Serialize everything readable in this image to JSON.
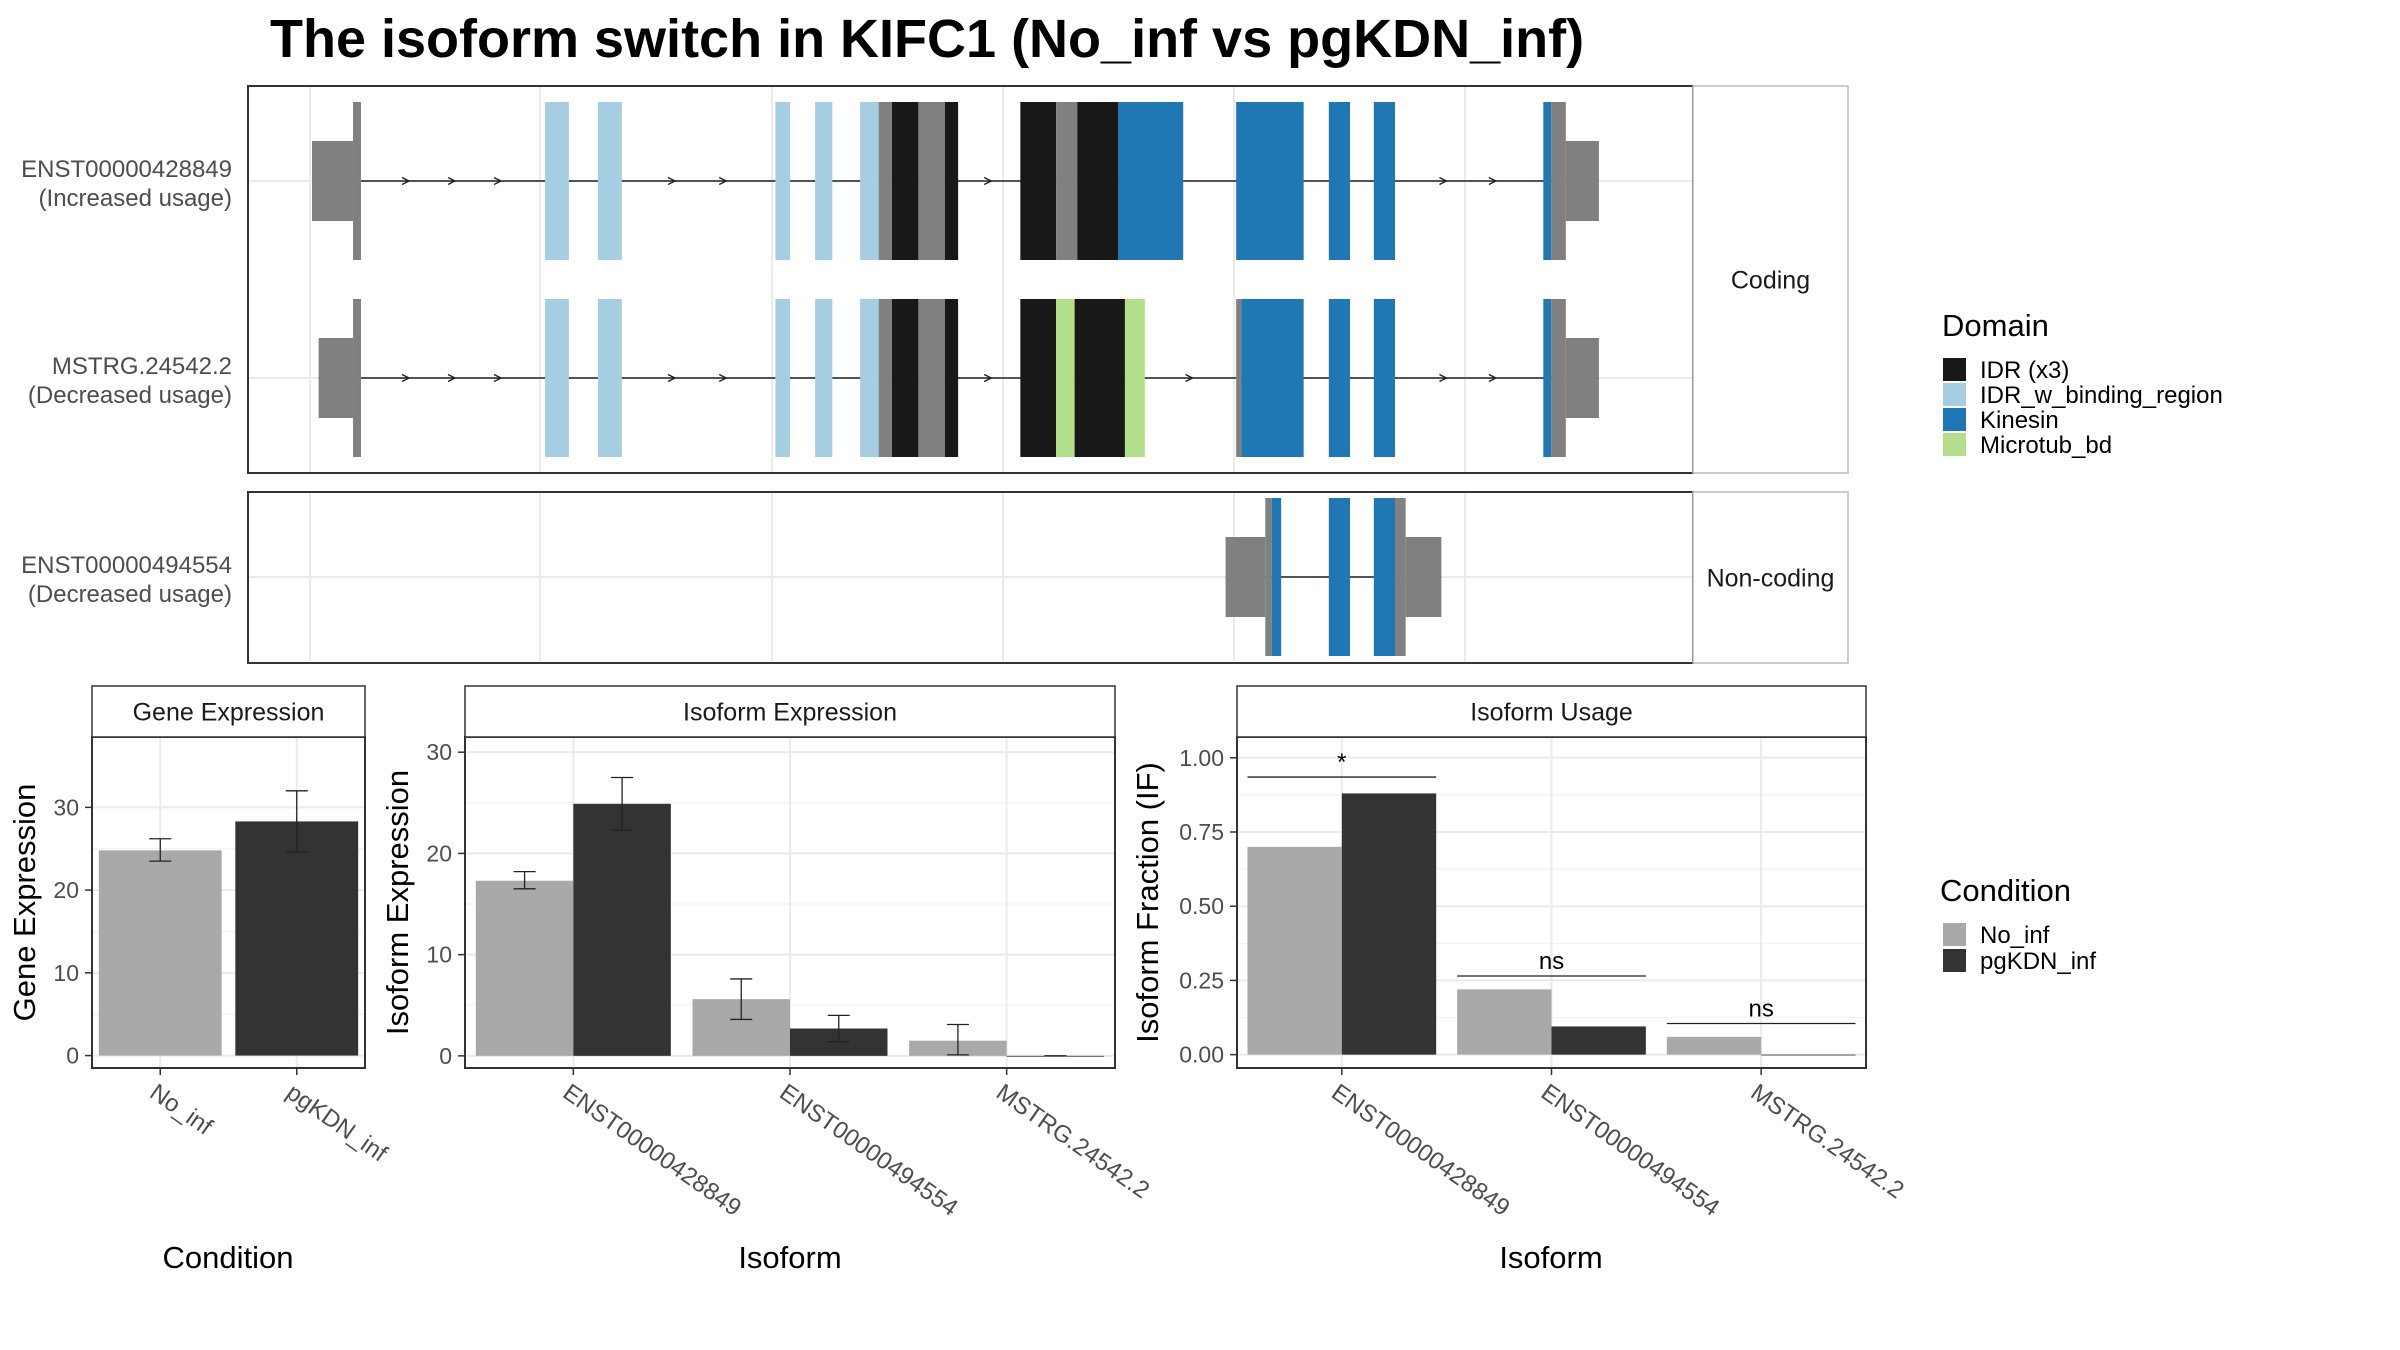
{
  "title": "The isoform switch in KIFC1 (No_inf vs pgKDN_inf)",
  "colors": {
    "utr": "#808080",
    "IDR (x3)": "#181818",
    "IDR_w_binding_region": "#a6cee3",
    "Kinesin": "#1f78b4",
    "Microtub_bd": "#b2df8a",
    "No_inf": "#a9a9a9",
    "pgKDN_inf": "#333333"
  },
  "structure": {
    "coding_strip": "Coding",
    "noncoding_strip": "Non-coding",
    "tracks": [
      {
        "id": "ENST00000428849",
        "usage": "(Increased usage)",
        "panel": "coding",
        "span": [
          0.0,
          1.0
        ],
        "exons": [
          {
            "s": 0.0,
            "e": 0.031,
            "t": "utr"
          },
          {
            "s": 0.031,
            "e": 0.037,
            "t": "cds",
            "d": "utr"
          },
          {
            "s": 0.176,
            "e": 0.194,
            "t": "cds",
            "d": "IDR_w_binding_region"
          },
          {
            "s": 0.216,
            "e": 0.234,
            "t": "cds",
            "d": "IDR_w_binding_region"
          },
          {
            "s": 0.35,
            "e": 0.361,
            "t": "cds",
            "d": "IDR_w_binding_region"
          },
          {
            "s": 0.38,
            "e": 0.393,
            "t": "cds",
            "d": "IDR_w_binding_region"
          },
          {
            "s": 0.414,
            "e": 0.428,
            "t": "cds",
            "d": "IDR_w_binding_region"
          },
          {
            "s": 0.428,
            "e": 0.438,
            "t": "cds",
            "d": "utr"
          },
          {
            "s": 0.438,
            "e": 0.458,
            "t": "cds",
            "d": "IDR (x3)"
          },
          {
            "s": 0.458,
            "e": 0.478,
            "t": "cds",
            "d": "utr"
          },
          {
            "s": 0.478,
            "e": 0.488,
            "t": "cds",
            "d": "IDR (x3)"
          },
          {
            "s": 0.535,
            "e": 0.562,
            "t": "cds",
            "d": "IDR (x3)"
          },
          {
            "s": 0.562,
            "e": 0.578,
            "t": "cds",
            "d": "utr"
          },
          {
            "s": 0.578,
            "e": 0.609,
            "t": "cds",
            "d": "IDR (x3)"
          },
          {
            "s": 0.609,
            "e": 0.658,
            "t": "cds",
            "d": "Kinesin"
          },
          {
            "s": 0.698,
            "e": 0.749,
            "t": "cds",
            "d": "Kinesin"
          },
          {
            "s": 0.768,
            "e": 0.784,
            "t": "cds",
            "d": "Kinesin"
          },
          {
            "s": 0.802,
            "e": 0.818,
            "t": "cds",
            "d": "Kinesin"
          },
          {
            "s": 0.93,
            "e": 0.936,
            "t": "cds",
            "d": "Kinesin"
          },
          {
            "s": 0.936,
            "e": 0.947,
            "t": "cds",
            "d": "utr"
          },
          {
            "s": 0.947,
            "e": 0.972,
            "t": "utr"
          }
        ]
      },
      {
        "id": "MSTRG.24542.2",
        "usage": "(Decreased usage)",
        "panel": "coding",
        "span": [
          0.005,
          1.0
        ],
        "exons": [
          {
            "s": 0.005,
            "e": 0.031,
            "t": "utr"
          },
          {
            "s": 0.031,
            "e": 0.037,
            "t": "cds",
            "d": "utr"
          },
          {
            "s": 0.176,
            "e": 0.194,
            "t": "cds",
            "d": "IDR_w_binding_region"
          },
          {
            "s": 0.216,
            "e": 0.234,
            "t": "cds",
            "d": "IDR_w_binding_region"
          },
          {
            "s": 0.35,
            "e": 0.361,
            "t": "cds",
            "d": "IDR_w_binding_region"
          },
          {
            "s": 0.38,
            "e": 0.393,
            "t": "cds",
            "d": "IDR_w_binding_region"
          },
          {
            "s": 0.414,
            "e": 0.428,
            "t": "cds",
            "d": "IDR_w_binding_region"
          },
          {
            "s": 0.428,
            "e": 0.438,
            "t": "cds",
            "d": "utr"
          },
          {
            "s": 0.438,
            "e": 0.458,
            "t": "cds",
            "d": "IDR (x3)"
          },
          {
            "s": 0.458,
            "e": 0.478,
            "t": "cds",
            "d": "utr"
          },
          {
            "s": 0.478,
            "e": 0.488,
            "t": "cds",
            "d": "IDR (x3)"
          },
          {
            "s": 0.535,
            "e": 0.562,
            "t": "cds",
            "d": "IDR (x3)"
          },
          {
            "s": 0.562,
            "e": 0.576,
            "t": "cds",
            "d": "Microtub_bd"
          },
          {
            "s": 0.576,
            "e": 0.614,
            "t": "cds",
            "d": "IDR (x3)"
          },
          {
            "s": 0.614,
            "e": 0.629,
            "t": "cds",
            "d": "Microtub_bd"
          },
          {
            "s": 0.698,
            "e": 0.702,
            "t": "cds",
            "d": "utr"
          },
          {
            "s": 0.702,
            "e": 0.749,
            "t": "cds",
            "d": "Kinesin"
          },
          {
            "s": 0.768,
            "e": 0.784,
            "t": "cds",
            "d": "Kinesin"
          },
          {
            "s": 0.802,
            "e": 0.818,
            "t": "cds",
            "d": "Kinesin"
          },
          {
            "s": 0.93,
            "e": 0.936,
            "t": "cds",
            "d": "Kinesin"
          },
          {
            "s": 0.936,
            "e": 0.947,
            "t": "cds",
            "d": "utr"
          },
          {
            "s": 0.947,
            "e": 0.972,
            "t": "utr"
          }
        ]
      },
      {
        "id": "ENST00000494554",
        "usage": "(Decreased usage)",
        "panel": "noncoding",
        "span": [
          0.69,
          0.84
        ],
        "exons": [
          {
            "s": 0.69,
            "e": 0.72,
            "t": "utr"
          },
          {
            "s": 0.72,
            "e": 0.725,
            "t": "cds",
            "d": "utr"
          },
          {
            "s": 0.725,
            "e": 0.732,
            "t": "cds",
            "d": "Kinesin"
          },
          {
            "s": 0.768,
            "e": 0.784,
            "t": "cds",
            "d": "Kinesin"
          },
          {
            "s": 0.802,
            "e": 0.818,
            "t": "cds",
            "d": "Kinesin"
          },
          {
            "s": 0.818,
            "e": 0.826,
            "t": "cds",
            "d": "utr"
          },
          {
            "s": 0.826,
            "e": 0.853,
            "t": "utr"
          }
        ]
      }
    ]
  },
  "legend": {
    "domain_title": "Domain",
    "domains": [
      "IDR (x3)",
      "IDR_w_binding_region",
      "Kinesin",
      "Microtub_bd"
    ],
    "condition_title": "Condition",
    "conditions": [
      "No_inf",
      "pgKDN_inf"
    ]
  },
  "chart_data": [
    {
      "type": "bar",
      "title": "Gene Expression",
      "xlabel": "Condition",
      "ylabel": "Gene Expression",
      "categories": [
        "No_inf",
        "pgKDN_inf"
      ],
      "values": [
        24.8,
        28.3
      ],
      "err_low": [
        23.5,
        24.6
      ],
      "err_high": [
        26.2,
        32.0
      ],
      "fills": [
        "No_inf",
        "pgKDN_inf"
      ],
      "ylim": [
        -1.5,
        38.5
      ],
      "yticks": [
        0,
        10,
        20,
        30
      ]
    },
    {
      "type": "bar",
      "title": "Isoform Expression",
      "xlabel": "Isoform",
      "ylabel": "Isoform Expression",
      "categories": [
        "ENST00000428849",
        "ENST00000494554",
        "MSTRG.24542.2"
      ],
      "yticks": [
        0,
        10,
        20,
        30
      ],
      "ylim": [
        -1.2,
        31.5
      ],
      "series": [
        {
          "name": "No_inf",
          "values": [
            17.3,
            5.6,
            1.5
          ],
          "err_low": [
            16.5,
            3.6,
            0.1
          ],
          "err_high": [
            18.2,
            7.6,
            3.1
          ]
        },
        {
          "name": "pgKDN_inf",
          "values": [
            24.9,
            2.7,
            0.0
          ],
          "err_low": [
            22.3,
            1.4,
            0.0
          ],
          "err_high": [
            27.5,
            4.0,
            0.0
          ]
        }
      ]
    },
    {
      "type": "bar",
      "title": "Isoform Usage",
      "xlabel": "Isoform",
      "ylabel": "Isoform Fraction (IF)",
      "categories": [
        "ENST00000428849",
        "ENST00000494554",
        "MSTRG.24542.2"
      ],
      "yticks": [
        0.0,
        0.25,
        0.5,
        0.75,
        1.0
      ],
      "ytick_labels": [
        "0.00",
        "0.25",
        "0.50",
        "0.75",
        "1.00"
      ],
      "ylim": [
        -0.045,
        1.07
      ],
      "series": [
        {
          "name": "No_inf",
          "values": [
            0.7,
            0.22,
            0.06
          ]
        },
        {
          "name": "pgKDN_inf",
          "values": [
            0.88,
            0.095,
            0.0
          ]
        }
      ],
      "significance": [
        {
          "label": "*",
          "y": 0.935
        },
        {
          "label": "ns",
          "y": 0.265
        },
        {
          "label": "ns",
          "y": 0.105
        }
      ]
    }
  ]
}
